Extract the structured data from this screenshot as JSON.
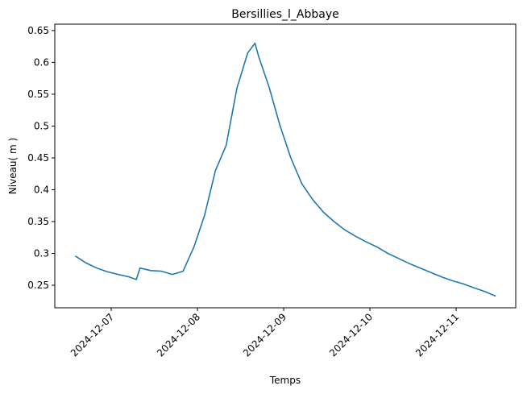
{
  "chart_data": {
    "type": "line",
    "title": "Bersillies_l_Abbaye",
    "xlabel": "Temps",
    "ylabel": "Niveau( m )",
    "x": [
      "2024-12-06T14:00",
      "2024-12-06T17:00",
      "2024-12-06T20:00",
      "2024-12-06T23:00",
      "2024-12-07T02:00",
      "2024-12-07T05:00",
      "2024-12-07T07:00",
      "2024-12-07T08:00",
      "2024-12-07T11:00",
      "2024-12-07T14:00",
      "2024-12-07T17:00",
      "2024-12-07T20:00",
      "2024-12-07T23:00",
      "2024-12-08T02:00",
      "2024-12-08T05:00",
      "2024-12-08T08:00",
      "2024-12-08T11:00",
      "2024-12-08T14:00",
      "2024-12-08T16:00",
      "2024-12-08T17:00",
      "2024-12-08T20:00",
      "2024-12-08T23:00",
      "2024-12-09T02:00",
      "2024-12-09T05:00",
      "2024-12-09T08:00",
      "2024-12-09T11:00",
      "2024-12-09T14:00",
      "2024-12-09T17:00",
      "2024-12-09T20:00",
      "2024-12-09T23:00",
      "2024-12-10T02:00",
      "2024-12-10T05:00",
      "2024-12-10T08:00",
      "2024-12-10T11:00",
      "2024-12-10T14:00",
      "2024-12-10T17:00",
      "2024-12-10T20:00",
      "2024-12-10T23:00",
      "2024-12-11T02:00",
      "2024-12-11T05:00",
      "2024-12-11T08:00",
      "2024-12-11T11:00"
    ],
    "series": [
      {
        "name": "Niveau",
        "color": "#1f77b4",
        "values": [
          0.296,
          0.285,
          0.277,
          0.271,
          0.267,
          0.263,
          0.259,
          0.277,
          0.273,
          0.272,
          0.267,
          0.272,
          0.31,
          0.36,
          0.43,
          0.47,
          0.56,
          0.615,
          0.63,
          0.61,
          0.56,
          0.5,
          0.45,
          0.41,
          0.385,
          0.365,
          0.35,
          0.337,
          0.327,
          0.318,
          0.31,
          0.3,
          0.292,
          0.284,
          0.277,
          0.27,
          0.263,
          0.257,
          0.252,
          0.246,
          0.24,
          0.233
        ]
      }
    ],
    "xlim": [
      "2024-12-06T08:18",
      "2024-12-11T16:35"
    ],
    "xticks": [
      "2024-12-07",
      "2024-12-08",
      "2024-12-09",
      "2024-12-10",
      "2024-12-11"
    ],
    "ylim": [
      0.2146,
      0.66
    ],
    "yticks": [
      0.25,
      0.3,
      0.35,
      0.4,
      0.45,
      0.5,
      0.55,
      0.6,
      0.65
    ]
  }
}
